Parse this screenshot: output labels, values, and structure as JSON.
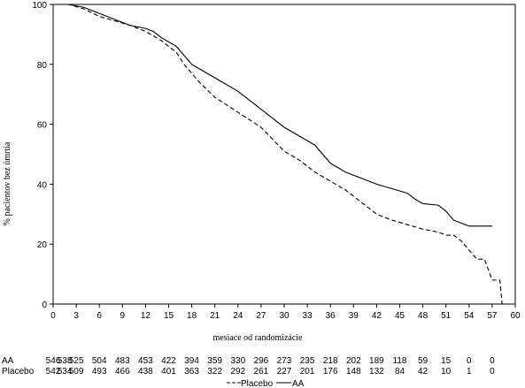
{
  "chart_data": {
    "type": "line",
    "title": "",
    "xlabel": "mesiace od randomizácie",
    "ylabel": "% pacientov bez úmrtia",
    "xlim": [
      0,
      60
    ],
    "ylim": [
      0,
      100
    ],
    "x_ticks": [
      0,
      3,
      6,
      9,
      12,
      15,
      18,
      21,
      24,
      27,
      30,
      33,
      36,
      39,
      42,
      45,
      48,
      51,
      54,
      57,
      60
    ],
    "y_ticks": [
      0,
      20,
      40,
      60,
      80,
      100
    ],
    "grid": false,
    "legend": {
      "placement": "bottom-center",
      "entries": [
        {
          "label": "Placebo",
          "style": "dashed"
        },
        {
          "label": "AA",
          "style": "solid"
        }
      ]
    },
    "series": [
      {
        "name": "AA",
        "style": "solid",
        "points": [
          [
            0,
            100
          ],
          [
            2,
            100
          ],
          [
            4,
            99
          ],
          [
            6,
            97
          ],
          [
            8,
            95
          ],
          [
            10,
            93
          ],
          [
            12,
            92
          ],
          [
            13,
            91
          ],
          [
            14,
            89
          ],
          [
            16,
            86
          ],
          [
            18,
            80
          ],
          [
            20,
            77
          ],
          [
            22,
            74
          ],
          [
            24,
            71
          ],
          [
            26,
            67
          ],
          [
            28,
            63
          ],
          [
            30,
            59
          ],
          [
            32,
            56
          ],
          [
            34,
            53
          ],
          [
            36,
            47
          ],
          [
            38,
            44
          ],
          [
            40,
            42
          ],
          [
            42,
            40
          ],
          [
            44,
            38.5
          ],
          [
            46,
            37
          ],
          [
            47,
            35
          ],
          [
            48,
            33.5
          ],
          [
            50,
            33
          ],
          [
            51,
            31
          ],
          [
            52,
            28
          ],
          [
            54,
            26
          ],
          [
            57,
            26
          ]
        ]
      },
      {
        "name": "Placebo",
        "style": "dashed",
        "points": [
          [
            0,
            100
          ],
          [
            2,
            100
          ],
          [
            4,
            98.5
          ],
          [
            6,
            96
          ],
          [
            8,
            94.5
          ],
          [
            10,
            93
          ],
          [
            12,
            91
          ],
          [
            14,
            88
          ],
          [
            16,
            84
          ],
          [
            17,
            80
          ],
          [
            19,
            74
          ],
          [
            21,
            69
          ],
          [
            24,
            64
          ],
          [
            27,
            59
          ],
          [
            30,
            51
          ],
          [
            32,
            48
          ],
          [
            34,
            44
          ],
          [
            36,
            41
          ],
          [
            38,
            38
          ],
          [
            40,
            34
          ],
          [
            42,
            30
          ],
          [
            44,
            28
          ],
          [
            46,
            26.5
          ],
          [
            48,
            25
          ],
          [
            50,
            24
          ],
          [
            51,
            23
          ],
          [
            52,
            23
          ],
          [
            53,
            21
          ],
          [
            54,
            18
          ],
          [
            55,
            15
          ],
          [
            56,
            15
          ],
          [
            57,
            8
          ],
          [
            58,
            8
          ],
          [
            58.3,
            0
          ]
        ]
      }
    ],
    "risk_table": {
      "x": [
        0,
        1.5,
        3,
        6,
        9,
        12,
        15,
        18,
        21,
        24,
        27,
        30,
        33,
        36,
        39,
        42,
        45,
        48,
        51,
        54,
        57,
        60
      ],
      "rows": [
        {
          "label": "AA",
          "values": [
            "546",
            "538",
            "525",
            "504",
            "483",
            "453",
            "422",
            "394",
            "359",
            "330",
            "296",
            "273",
            "235",
            "218",
            "202",
            "189",
            "118",
            "59",
            "15",
            "0",
            "0",
            ""
          ]
        },
        {
          "label": "Placebo",
          "values": [
            "542",
            "534",
            "509",
            "493",
            "466",
            "438",
            "401",
            "363",
            "322",
            "292",
            "261",
            "227",
            "201",
            "176",
            "148",
            "132",
            "84",
            "42",
            "10",
            "1",
            "0",
            ""
          ]
        }
      ]
    }
  }
}
